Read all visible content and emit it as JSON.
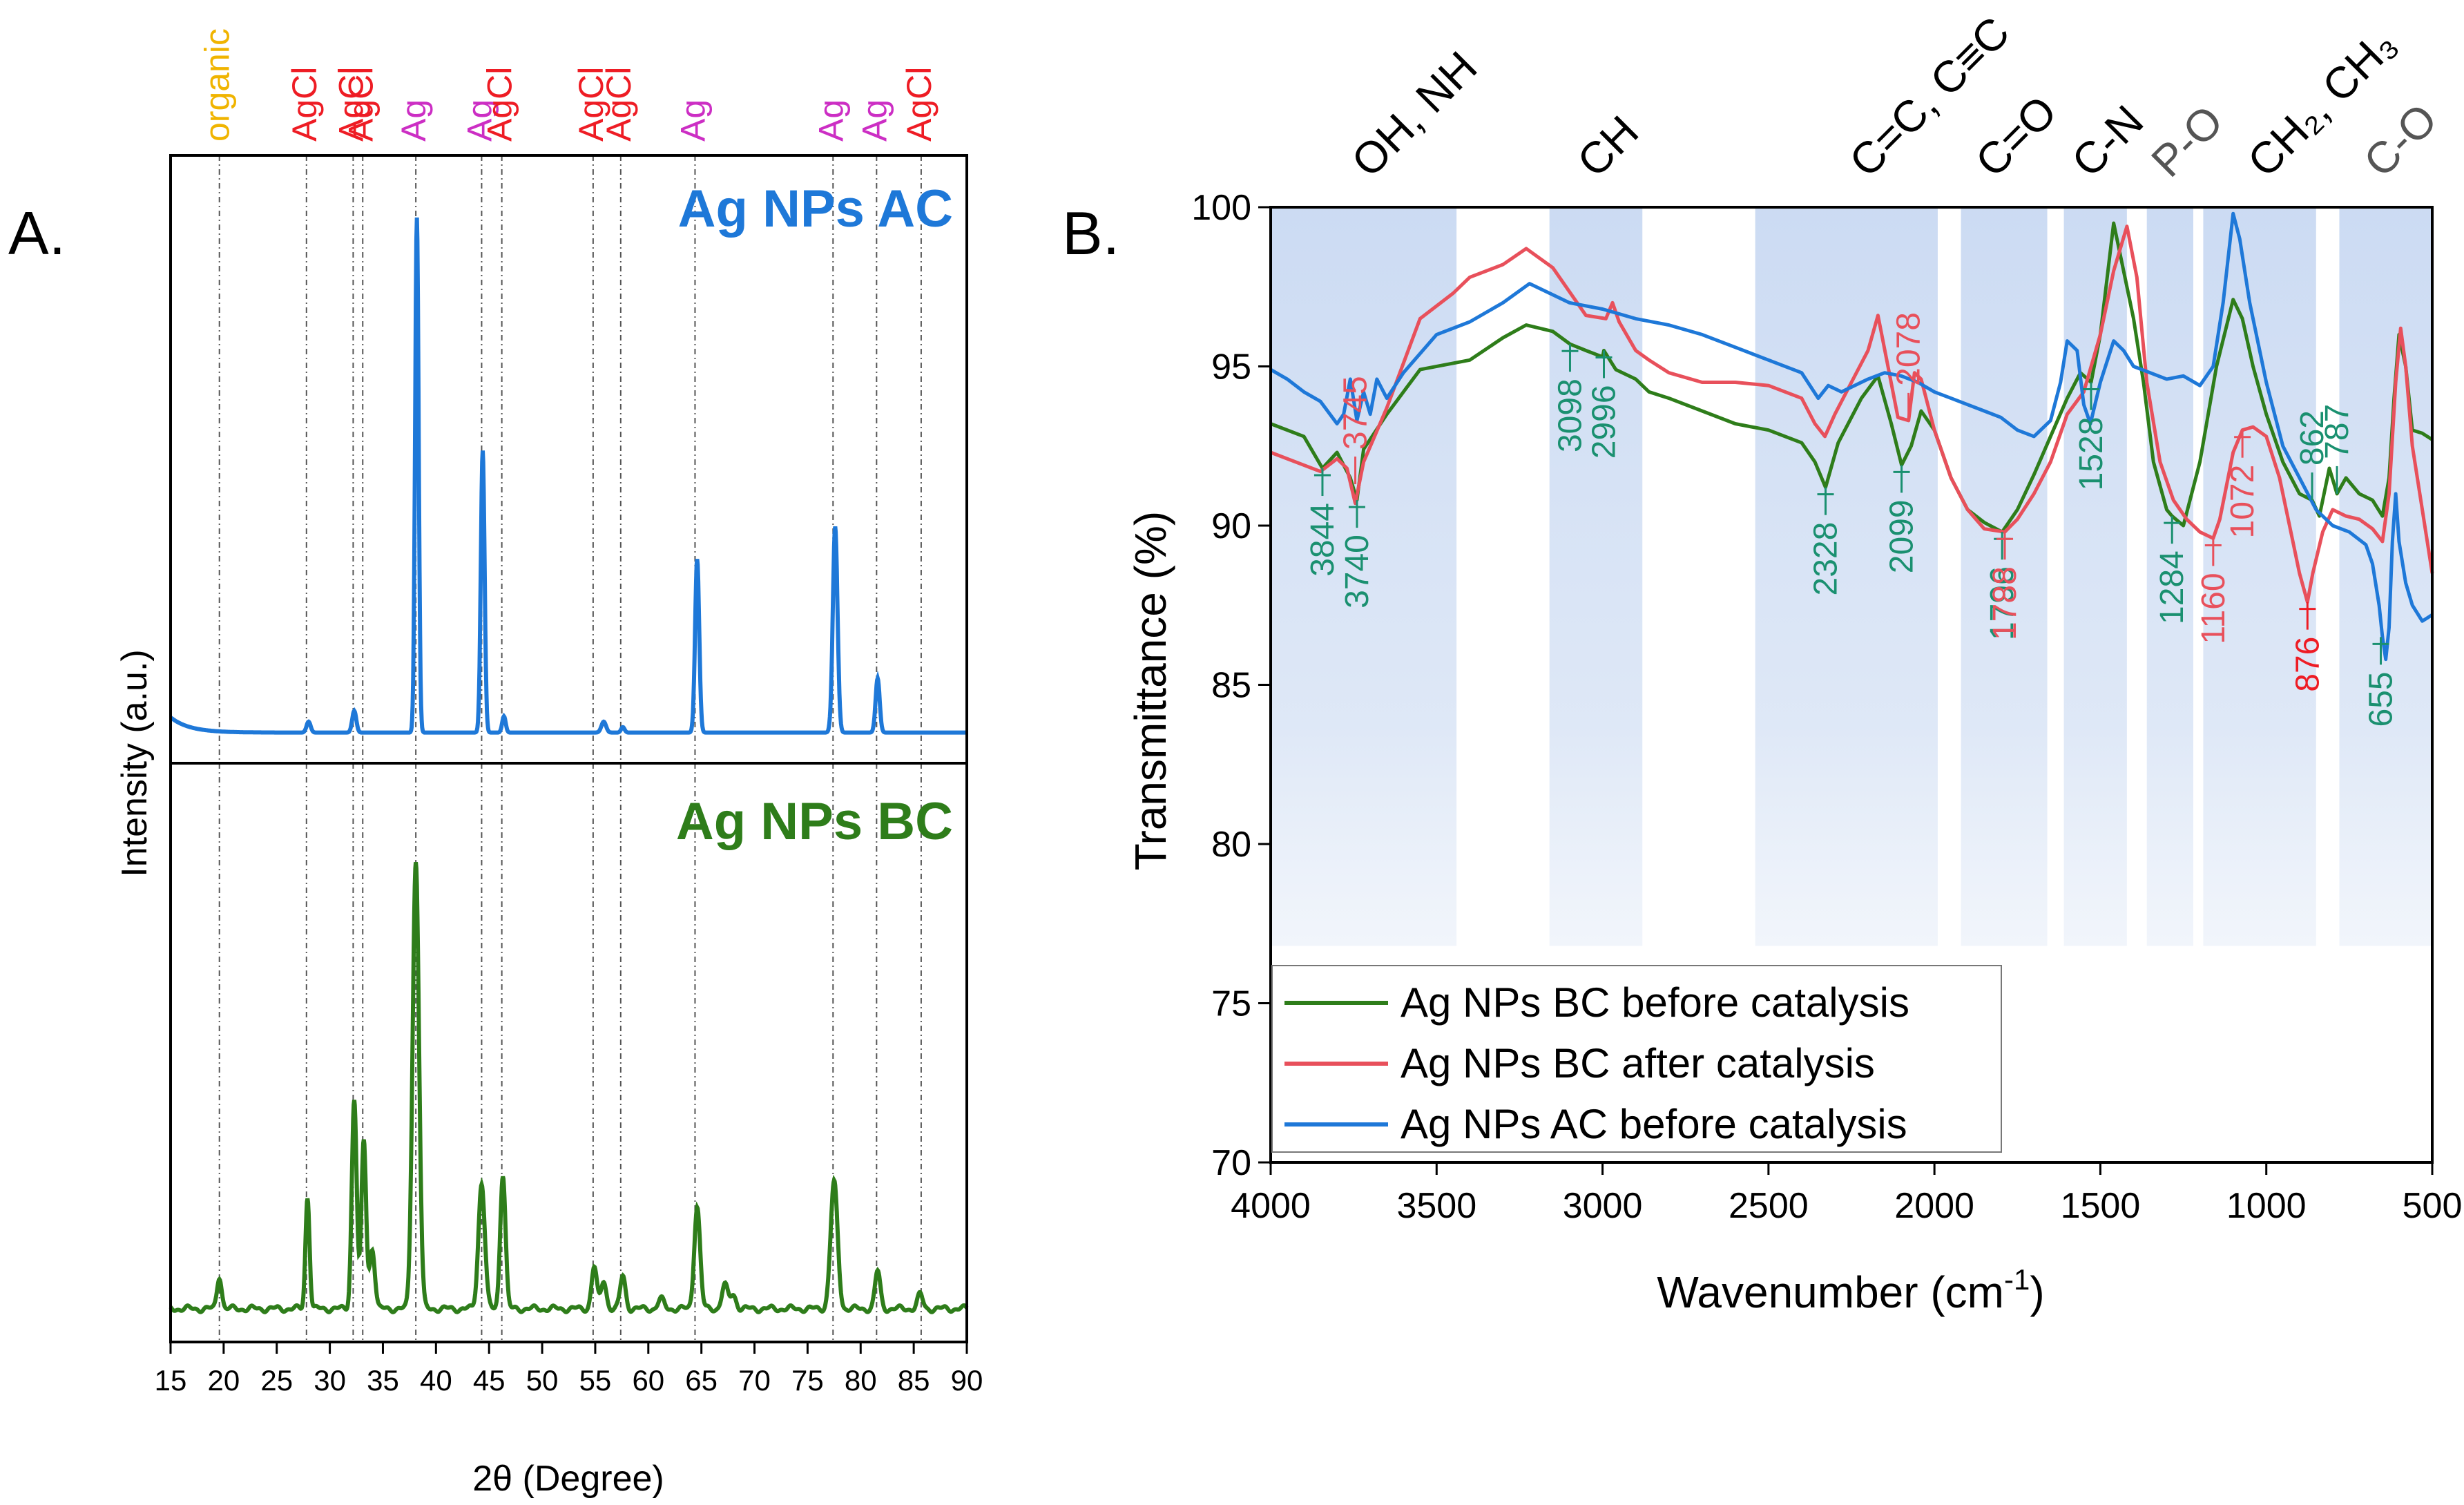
{
  "colors": {
    "green": "#2e7d1a",
    "red": "#e8505b",
    "blue": "#1e78d8",
    "teal": "#1a9070",
    "magenta": "#cc2ec4",
    "agcl_red": "#ee1c24",
    "organic": "#f0b400",
    "band": "#c9d9f2"
  },
  "panel_a_label": "A.",
  "panel_b_label": "B.",
  "chart_data": [
    {
      "type": "line",
      "title": "",
      "xlabel": "2θ (Degree)",
      "ylabel": "Intensity (a.u.)",
      "xlim": [
        15,
        90
      ],
      "x_ticks": [
        15,
        20,
        25,
        30,
        35,
        40,
        45,
        50,
        55,
        60,
        65,
        70,
        75,
        80,
        85,
        90
      ],
      "series": [
        {
          "name": "Ag NPs AC",
          "color": "#1e78d8",
          "baseline": 0.3,
          "peaks": [
            {
              "x": 28.0,
              "h": 2,
              "w": 0.35
            },
            {
              "x": 32.3,
              "h": 4,
              "w": 0.35
            },
            {
              "x": 38.2,
              "h": 95,
              "w": 0.3
            },
            {
              "x": 44.4,
              "h": 52,
              "w": 0.32
            },
            {
              "x": 46.4,
              "h": 3,
              "w": 0.3
            },
            {
              "x": 55.8,
              "h": 2,
              "w": 0.4
            },
            {
              "x": 57.6,
              "h": 1,
              "w": 0.3
            },
            {
              "x": 64.6,
              "h": 32,
              "w": 0.35
            },
            {
              "x": 77.6,
              "h": 38,
              "w": 0.4
            },
            {
              "x": 81.6,
              "h": 10,
              "w": 0.35
            }
          ]
        },
        {
          "name": "Ag NPs BC",
          "color": "#2e7d1a",
          "baseline": 1.5,
          "peaks": [
            {
              "x": 19.6,
              "h": 7,
              "w": 0.4
            },
            {
              "x": 27.9,
              "h": 24,
              "w": 0.35
            },
            {
              "x": 32.3,
              "h": 45,
              "w": 0.42
            },
            {
              "x": 33.2,
              "h": 36,
              "w": 0.4
            },
            {
              "x": 34.0,
              "h": 13,
              "w": 0.45
            },
            {
              "x": 38.1,
              "h": 96,
              "w": 0.55
            },
            {
              "x": 44.3,
              "h": 27,
              "w": 0.55
            },
            {
              "x": 46.3,
              "h": 29,
              "w": 0.45
            },
            {
              "x": 54.9,
              "h": 9,
              "w": 0.45
            },
            {
              "x": 55.8,
              "h": 6,
              "w": 0.45
            },
            {
              "x": 57.6,
              "h": 7,
              "w": 0.45
            },
            {
              "x": 61.2,
              "h": 2,
              "w": 0.5
            },
            {
              "x": 64.6,
              "h": 22,
              "w": 0.5
            },
            {
              "x": 67.2,
              "h": 5,
              "w": 0.5
            },
            {
              "x": 68.0,
              "h": 3,
              "w": 0.5
            },
            {
              "x": 77.5,
              "h": 27,
              "w": 0.6
            },
            {
              "x": 81.6,
              "h": 8,
              "w": 0.45
            },
            {
              "x": 85.6,
              "h": 3,
              "w": 0.45
            }
          ]
        }
      ],
      "reference_lines": [
        {
          "x": 19.6,
          "label": "organic",
          "kind": "organic"
        },
        {
          "x": 27.8,
          "label": "AgCl",
          "kind": "AgCl"
        },
        {
          "x": 32.2,
          "label": "AgCl",
          "kind": "AgCl"
        },
        {
          "x": 33.1,
          "label": "AgCl",
          "kind": "AgCl"
        },
        {
          "x": 38.1,
          "label": "Ag",
          "kind": "Ag"
        },
        {
          "x": 44.3,
          "label": "Ag",
          "kind": "Ag"
        },
        {
          "x": 46.2,
          "label": "AgCl",
          "kind": "AgCl"
        },
        {
          "x": 54.8,
          "label": "AgCl",
          "kind": "AgCl"
        },
        {
          "x": 57.4,
          "label": "AgCl",
          "kind": "AgCl"
        },
        {
          "x": 64.4,
          "label": "Ag",
          "kind": "Ag"
        },
        {
          "x": 77.4,
          "label": "Ag",
          "kind": "Ag"
        },
        {
          "x": 81.5,
          "label": "Ag",
          "kind": "Ag"
        },
        {
          "x": 85.7,
          "label": "AgCl",
          "kind": "AgCl"
        }
      ]
    },
    {
      "type": "line",
      "title": "",
      "xlabel": "Wavenumber (cm",
      "xlabel_sup": "-1",
      "xlabel_end": ")",
      "ylabel": "Transmittance (%)",
      "xlim": [
        4000,
        500
      ],
      "ylim": [
        70,
        100
      ],
      "x_ticks": [
        4000,
        3500,
        3000,
        2500,
        2000,
        1500,
        1000,
        500
      ],
      "y_ticks": [
        70,
        75,
        80,
        85,
        90,
        95,
        100
      ],
      "bands": [
        {
          "from": 4000,
          "to": 3440,
          "label": "OH, NH",
          "label_x": 3700
        },
        {
          "from": 3160,
          "to": 2880,
          "label": "CH",
          "label_x": 3020
        },
        {
          "from": 2540,
          "to": 1990,
          "label": "C=C, C≡C",
          "label_x": 2200
        },
        {
          "from": 1920,
          "to": 1660,
          "label": "C=O",
          "label_x": 1820
        },
        {
          "from": 1610,
          "to": 1420,
          "label": "C-N",
          "label_x": 1530
        },
        {
          "from": 1360,
          "to": 1220,
          "label": "P-O",
          "label_x": 1290
        },
        {
          "from": 1190,
          "to": 850,
          "label": "CH₂, CH₃",
          "label_x": 1000
        },
        {
          "from": 780,
          "to": 500,
          "label": "C-O",
          "label_x": 650
        }
      ],
      "series": [
        {
          "name": "Ag NPs BC before catalysis",
          "color": "#2e7d1a",
          "x": [
            4000,
            3900,
            3844,
            3800,
            3760,
            3740,
            3720,
            3650,
            3550,
            3400,
            3300,
            3230,
            3150,
            3098,
            3050,
            3000,
            2996,
            2960,
            2900,
            2860,
            2800,
            2700,
            2600,
            2500,
            2400,
            2360,
            2328,
            2290,
            2220,
            2170,
            2130,
            2099,
            2070,
            2040,
            2000,
            1950,
            1900,
            1850,
            1796,
            1750,
            1700,
            1650,
            1600,
            1560,
            1528,
            1500,
            1460,
            1430,
            1400,
            1370,
            1340,
            1300,
            1284,
            1250,
            1200,
            1150,
            1100,
            1072,
            1040,
            1000,
            950,
            900,
            862,
            840,
            810,
            787,
            760,
            720,
            680,
            650,
            630,
            615,
            600,
            580,
            560,
            530,
            500
          ],
          "y": [
            93.2,
            92.8,
            91.8,
            92.3,
            91.5,
            90.8,
            92.4,
            93.5,
            94.9,
            95.2,
            95.9,
            96.3,
            96.1,
            95.7,
            95.5,
            95.3,
            95.5,
            94.9,
            94.6,
            94.2,
            94.0,
            93.6,
            93.2,
            93.0,
            92.6,
            92.0,
            91.2,
            92.6,
            94.0,
            94.7,
            93.2,
            91.9,
            92.5,
            93.6,
            93.0,
            91.5,
            90.5,
            90.1,
            89.8,
            90.5,
            91.6,
            92.8,
            94.0,
            94.8,
            94.5,
            96.0,
            99.5,
            98.0,
            96.5,
            94.5,
            92.0,
            90.5,
            90.3,
            90.0,
            92.0,
            95.0,
            97.1,
            96.5,
            95.0,
            93.5,
            92.0,
            91.0,
            90.8,
            90.3,
            91.8,
            91.0,
            91.5,
            91.0,
            90.8,
            90.3,
            91.5,
            94.0,
            96.0,
            95.0,
            93.0,
            92.9,
            92.7
          ]
        },
        {
          "name": "Ag NPs BC after catalysis",
          "color": "#e8505b",
          "x": [
            4000,
            3900,
            3850,
            3800,
            3770,
            3745,
            3720,
            3650,
            3550,
            3450,
            3400,
            3300,
            3230,
            3150,
            3050,
            2990,
            2970,
            2950,
            2900,
            2860,
            2800,
            2700,
            2600,
            2500,
            2400,
            2360,
            2330,
            2300,
            2250,
            2200,
            2170,
            2140,
            2110,
            2078,
            2060,
            2040,
            2000,
            1950,
            1900,
            1850,
            1788,
            1750,
            1700,
            1650,
            1600,
            1550,
            1500,
            1460,
            1420,
            1390,
            1360,
            1320,
            1280,
            1240,
            1200,
            1160,
            1140,
            1100,
            1072,
            1040,
            1000,
            960,
            920,
            900,
            876,
            860,
            830,
            800,
            760,
            720,
            680,
            650,
            630,
            610,
            595,
            580,
            560,
            530,
            500
          ],
          "y": [
            92.3,
            91.9,
            91.7,
            92.1,
            91.8,
            90.7,
            92.0,
            93.7,
            96.5,
            97.3,
            97.8,
            98.2,
            98.7,
            98.1,
            96.6,
            96.5,
            97.0,
            96.4,
            95.5,
            95.2,
            94.8,
            94.5,
            94.5,
            94.4,
            94.0,
            93.2,
            92.8,
            93.5,
            94.5,
            95.5,
            96.6,
            95.0,
            93.4,
            93.3,
            94.8,
            94.6,
            93.0,
            91.5,
            90.5,
            89.9,
            89.8,
            90.2,
            91.0,
            92.0,
            93.5,
            94.2,
            96.0,
            98.0,
            99.4,
            97.8,
            94.5,
            92.0,
            90.8,
            90.2,
            89.8,
            89.6,
            90.2,
            92.3,
            93.0,
            93.1,
            92.8,
            91.5,
            89.5,
            88.5,
            87.6,
            88.5,
            89.8,
            90.5,
            90.3,
            90.2,
            89.9,
            89.5,
            91.0,
            94.5,
            96.2,
            95.0,
            92.5,
            90.5,
            88.5
          ]
        },
        {
          "name": "Ag NPs AC before catalysis",
          "color": "#1e78d8",
          "x": [
            4000,
            3950,
            3900,
            3850,
            3800,
            3780,
            3760,
            3740,
            3720,
            3700,
            3680,
            3650,
            3600,
            3500,
            3400,
            3300,
            3220,
            3100,
            3000,
            2900,
            2800,
            2700,
            2600,
            2500,
            2400,
            2350,
            2320,
            2280,
            2200,
            2150,
            2100,
            2050,
            2000,
            1950,
            1900,
            1850,
            1800,
            1750,
            1700,
            1650,
            1620,
            1600,
            1570,
            1550,
            1530,
            1500,
            1460,
            1430,
            1400,
            1350,
            1300,
            1250,
            1200,
            1160,
            1130,
            1100,
            1080,
            1050,
            1000,
            950,
            900,
            850,
            800,
            750,
            700,
            680,
            660,
            650,
            640,
            630,
            620,
            610,
            600,
            580,
            560,
            530,
            500
          ],
          "y": [
            94.9,
            94.6,
            94.2,
            93.9,
            93.2,
            93.5,
            94.6,
            93.3,
            94.2,
            93.5,
            94.6,
            94.0,
            94.8,
            96.0,
            96.4,
            97.0,
            97.6,
            97.0,
            96.8,
            96.5,
            96.3,
            96.0,
            95.6,
            95.2,
            94.8,
            94.0,
            94.4,
            94.2,
            94.6,
            94.8,
            94.7,
            94.5,
            94.2,
            94.0,
            93.8,
            93.6,
            93.4,
            93.0,
            92.8,
            93.3,
            94.5,
            95.8,
            95.5,
            93.8,
            93.2,
            94.5,
            95.8,
            95.5,
            95.0,
            94.8,
            94.6,
            94.7,
            94.4,
            95.0,
            97.0,
            99.8,
            99.0,
            97.0,
            94.5,
            92.5,
            91.5,
            90.5,
            90.0,
            89.8,
            89.4,
            88.8,
            87.5,
            86.5,
            85.8,
            86.8,
            89.5,
            91.0,
            89.5,
            88.2,
            87.5,
            87.0,
            87.2
          ]
        }
      ],
      "annotations": [
        {
          "x": 3844,
          "y": 91.8,
          "label": "3844",
          "color": "#1a9070",
          "dir": "down"
        },
        {
          "x": 3740,
          "y": 90.8,
          "label": "3740",
          "color": "#1a9070",
          "dir": "down"
        },
        {
          "x": 3745,
          "y": 91.3,
          "label": "3745",
          "color": "#e8505b",
          "dir": "up"
        },
        {
          "x": 3098,
          "y": 95.7,
          "label": "3098",
          "color": "#1a9070",
          "dir": "down"
        },
        {
          "x": 2996,
          "y": 95.5,
          "label": "2996",
          "color": "#1a9070",
          "dir": "down"
        },
        {
          "x": 2328,
          "y": 91.2,
          "label": "2328",
          "color": "#1a9070",
          "dir": "down"
        },
        {
          "x": 2099,
          "y": 91.9,
          "label": "2099",
          "color": "#1a9070",
          "dir": "down"
        },
        {
          "x": 2078,
          "y": 93.3,
          "label": "2078",
          "color": "#e8505b",
          "dir": "up"
        },
        {
          "x": 1796,
          "y": 89.8,
          "label": "1796",
          "color": "#1a9070",
          "dir": "down"
        },
        {
          "x": 1788,
          "y": 89.8,
          "label": "1788",
          "color": "#e8505b",
          "dir": "down"
        },
        {
          "x": 1528,
          "y": 94.5,
          "label": "1528",
          "color": "#1a9070",
          "dir": "down"
        },
        {
          "x": 1284,
          "y": 90.3,
          "label": "1284",
          "color": "#1a9070",
          "dir": "down"
        },
        {
          "x": 1160,
          "y": 89.6,
          "label": "1160",
          "color": "#e8505b",
          "dir": "down"
        },
        {
          "x": 1072,
          "y": 93.0,
          "label": "1072",
          "color": "#e8505b",
          "dir": "down"
        },
        {
          "x": 862,
          "y": 90.8,
          "label": "862",
          "color": "#1a9070",
          "dir": "up"
        },
        {
          "x": 787,
          "y": 91.0,
          "label": "787",
          "color": "#1a9070",
          "dir": "up"
        },
        {
          "x": 876,
          "y": 87.6,
          "label": "876",
          "color": "#ee1c24",
          "dir": "down"
        },
        {
          "x": 655,
          "y": 86.5,
          "label": "655",
          "color": "#1a9070",
          "dir": "down"
        }
      ]
    }
  ]
}
